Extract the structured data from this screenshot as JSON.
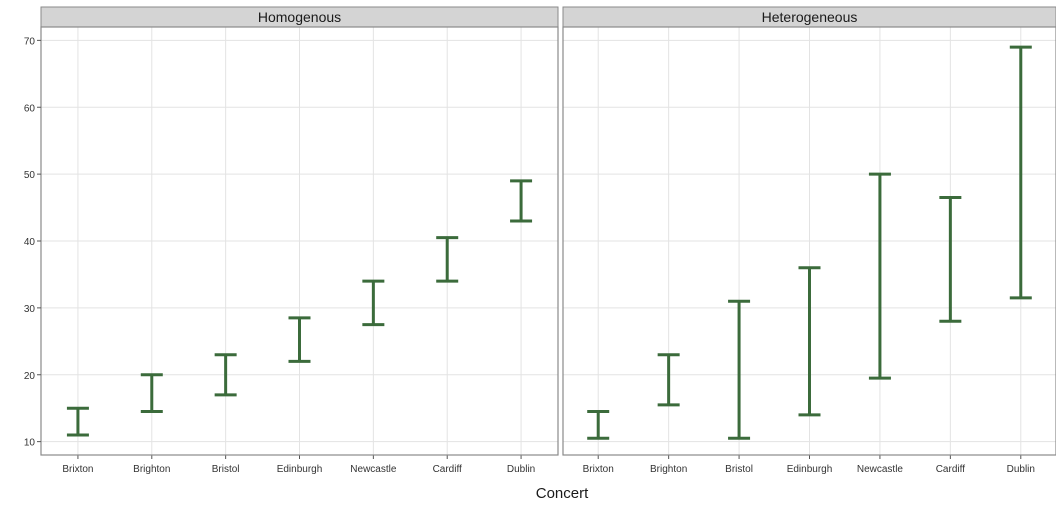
{
  "chart_data": {
    "type": "errorbar",
    "title": "",
    "xlabel": "Concert",
    "ylabel": "",
    "ylim": [
      8,
      72
    ],
    "yticks": [
      10,
      20,
      30,
      40,
      50,
      60,
      70
    ],
    "grid": true,
    "categories": [
      "Brixton",
      "Brighton",
      "Bristol",
      "Edinburgh",
      "Newcastle",
      "Cardiff",
      "Dublin"
    ],
    "colors": {
      "bar": "#3b6b3b",
      "strip": "#d4d4d4",
      "grid": "#e3e3e3",
      "border": "#8a8a8a"
    },
    "panels": [
      {
        "name": "Homogenous",
        "lower": [
          11,
          14.5,
          17,
          22,
          27.5,
          34,
          43
        ],
        "upper": [
          15,
          20,
          23,
          28.5,
          34,
          40.5,
          49
        ]
      },
      {
        "name": "Heterogeneous",
        "lower": [
          10.5,
          15.5,
          10.5,
          14,
          19.5,
          28,
          31.5
        ],
        "upper": [
          14.5,
          23,
          31,
          36,
          50,
          46.5,
          69
        ]
      }
    ]
  }
}
